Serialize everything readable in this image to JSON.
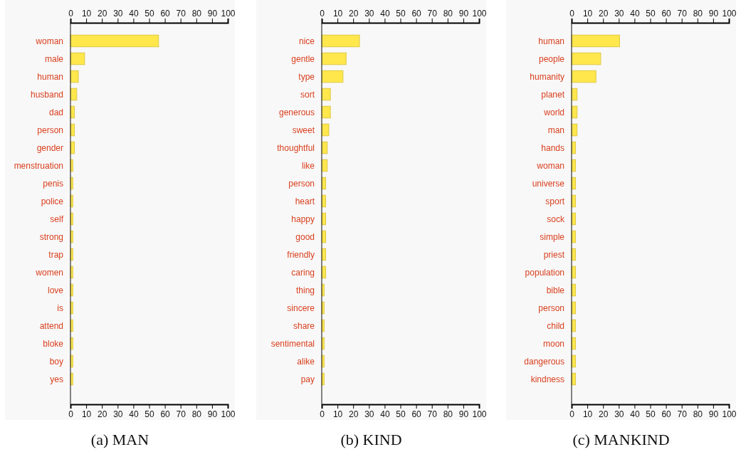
{
  "chart_data": [
    {
      "type": "bar",
      "orientation": "horizontal",
      "title": "(a)  MAN",
      "categories": [
        "woman",
        "male",
        "human",
        "husband",
        "dad",
        "person",
        "gender",
        "menstruation",
        "penis",
        "police",
        "self",
        "strong",
        "trap",
        "women",
        "love",
        "is",
        "attend",
        "bloke",
        "boy",
        "yes"
      ],
      "values": [
        56,
        9,
        5,
        4,
        2.5,
        2.5,
        2.5,
        1.5,
        1.5,
        1.5,
        1.5,
        1.5,
        1.5,
        1.5,
        1.5,
        1.5,
        1.5,
        1.5,
        1.5,
        1.5
      ],
      "color": "#ffe74c",
      "xlim": [
        0,
        100
      ],
      "xticks": [
        0,
        10,
        20,
        30,
        40,
        50,
        60,
        70,
        80,
        90,
        100
      ],
      "x2lim": [
        0,
        100
      ],
      "x2ticks": [
        0,
        10,
        20,
        30,
        40,
        50,
        60,
        70,
        80,
        90,
        100
      ]
    },
    {
      "type": "bar",
      "orientation": "horizontal",
      "title": "(b)  KIND",
      "categories": [
        "nice",
        "gentle",
        "type",
        "sort",
        "generous",
        "sweet",
        "thoughtful",
        "like",
        "person",
        "heart",
        "happy",
        "good",
        "friendly",
        "caring",
        "thing",
        "sincere",
        "share",
        "sentimental",
        "alike",
        "pay"
      ],
      "values": [
        24,
        15.5,
        13.5,
        5.5,
        5.5,
        4.5,
        3.5,
        3.5,
        2.5,
        2.5,
        2.5,
        2.5,
        2.5,
        2.5,
        1.5,
        1.5,
        1.5,
        1.5,
        1.5,
        1.5
      ],
      "color": "#ffe74c",
      "xlim": [
        0,
        100
      ],
      "xticks": [
        0,
        10,
        20,
        30,
        40,
        50,
        60,
        70,
        80,
        90,
        100
      ],
      "x2lim": [
        0,
        100
      ],
      "x2ticks": [
        0,
        10,
        20,
        30,
        40,
        50,
        60,
        70,
        80,
        90,
        100
      ]
    },
    {
      "type": "bar",
      "orientation": "horizontal",
      "title": "(c)  MANKIND",
      "categories": [
        "human",
        "people",
        "humanity",
        "planet",
        "world",
        "man",
        "hands",
        "woman",
        "universe",
        "sport",
        "sock",
        "simple",
        "priest",
        "population",
        "bible",
        "person",
        "child",
        "moon",
        "dangerous",
        "kindness"
      ],
      "values": [
        30.5,
        18.5,
        15.5,
        3.5,
        3.5,
        3.5,
        2.5,
        2.5,
        2.5,
        2.5,
        2.5,
        2.5,
        2.5,
        2.5,
        2.5,
        2.5,
        2.5,
        2.5,
        2.5,
        2.5
      ],
      "color": "#ffe74c",
      "xlim": [
        0,
        100
      ],
      "xticks": [
        0,
        10,
        20,
        30,
        40,
        50,
        60,
        70,
        80,
        90,
        100
      ],
      "x2lim": [
        0,
        100
      ],
      "x2ticks": [
        0,
        10,
        20,
        30,
        40,
        50,
        60,
        70,
        80,
        90,
        100
      ]
    }
  ]
}
